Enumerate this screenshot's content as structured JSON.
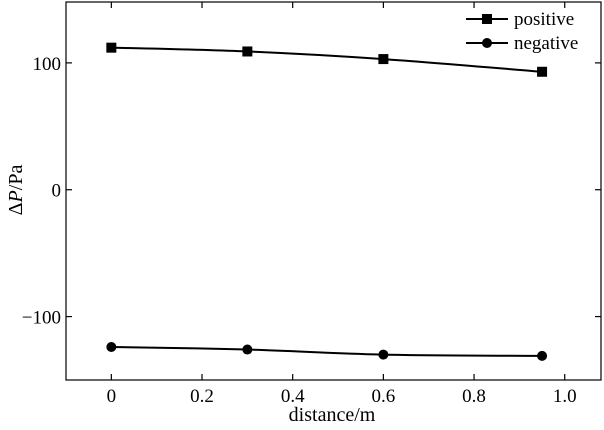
{
  "chart_data": {
    "type": "line",
    "xlabel": "distance/m",
    "ylabel": "ΔP/Pa",
    "xlim": [
      -0.1,
      1.08
    ],
    "ylim": [
      -150,
      148
    ],
    "xticks": [
      0,
      0.2,
      0.4,
      0.6,
      0.8,
      1.0
    ],
    "xtick_labels": [
      "0",
      "0.2",
      "0.4",
      "0.6",
      "0.8",
      "1.0"
    ],
    "yticks": [
      -100,
      0,
      100
    ],
    "ytick_labels": [
      "−100",
      "0",
      "100"
    ],
    "grid": false,
    "legend_position": "top-right",
    "series": [
      {
        "name": "positive",
        "marker": "square",
        "x": [
          0,
          0.3,
          0.6,
          0.95
        ],
        "y": [
          112,
          109,
          103,
          93
        ]
      },
      {
        "name": "negative",
        "marker": "circle",
        "x": [
          0,
          0.3,
          0.6,
          0.95
        ],
        "y": [
          -124,
          -126,
          -130,
          -131
        ]
      }
    ]
  }
}
